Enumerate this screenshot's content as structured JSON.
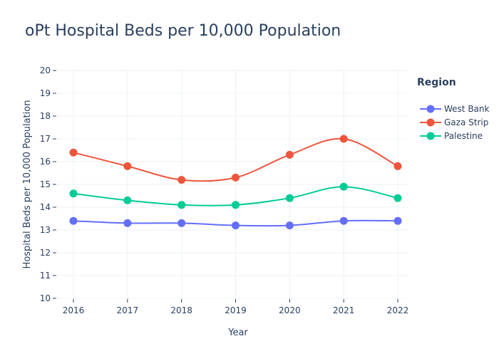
{
  "chart_data": {
    "type": "line",
    "title": "oPt Hospital Beds per 10,000 Population",
    "xlabel": "Year",
    "ylabel": "Hospital Beds per 10,000 Population",
    "x": [
      2016,
      2017,
      2018,
      2019,
      2020,
      2021,
      2022
    ],
    "x_tick_labels": [
      "2016",
      "2017",
      "2018",
      "2019",
      "2020",
      "2021",
      "2022"
    ],
    "ylim": [
      10,
      20
    ],
    "y_tick_labels": [
      "10",
      "11",
      "12",
      "13",
      "14",
      "15",
      "16",
      "17",
      "18",
      "19",
      "20"
    ],
    "grid": true,
    "legend": {
      "title": "Region",
      "placement": "right"
    },
    "series": [
      {
        "name": "West Bank",
        "color": "#636efa",
        "values": [
          13.4,
          13.3,
          13.3,
          13.2,
          13.2,
          13.4,
          13.4
        ]
      },
      {
        "name": "Gaza Strip",
        "color": "#ef553b",
        "values": [
          16.4,
          15.8,
          15.2,
          15.3,
          16.3,
          17.0,
          15.8
        ]
      },
      {
        "name": "Palestine",
        "color": "#00cc96",
        "values": [
          14.6,
          14.3,
          14.1,
          14.1,
          14.4,
          14.9,
          14.4
        ]
      }
    ]
  }
}
